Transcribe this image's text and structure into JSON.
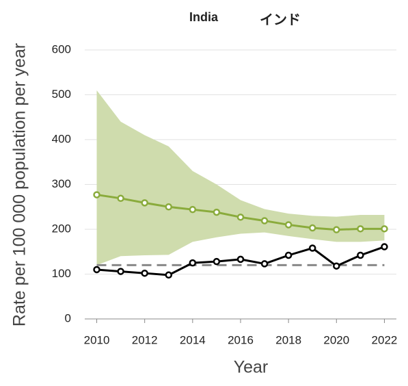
{
  "chart_data": {
    "type": "line",
    "title": "India",
    "subtitle": "インド",
    "xlabel": "Year",
    "ylabel": "Rate per 100 000 population per year",
    "x": [
      2010,
      2011,
      2012,
      2013,
      2014,
      2015,
      2016,
      2017,
      2018,
      2019,
      2020,
      2021,
      2022
    ],
    "series": [
      {
        "color": "#8aab3c",
        "values": [
          277,
          269,
          259,
          250,
          244,
          238,
          227,
          219,
          210,
          203,
          199,
          201,
          201
        ],
        "band": {
          "color": "#cfdcad",
          "upper": [
            510,
            440,
            410,
            385,
            330,
            300,
            265,
            245,
            235,
            230,
            228,
            232,
            232
          ],
          "lower": [
            120,
            140,
            142,
            143,
            172,
            182,
            190,
            193,
            185,
            178,
            172,
            172,
            175
          ]
        }
      },
      {
        "color": "#000000",
        "values": [
          110,
          106,
          102,
          98,
          125,
          128,
          133,
          123,
          142,
          158,
          118,
          142,
          161
        ]
      }
    ],
    "reference_line": {
      "value": 120,
      "color": "#888888"
    },
    "xlim": [
      2009.5,
      2022.5
    ],
    "xticks": [
      2010,
      2012,
      2014,
      2016,
      2018,
      2020,
      2022
    ],
    "ylim": [
      0,
      600
    ],
    "yticks": [
      0,
      100,
      200,
      300,
      400,
      500,
      600
    ],
    "grid": true
  }
}
